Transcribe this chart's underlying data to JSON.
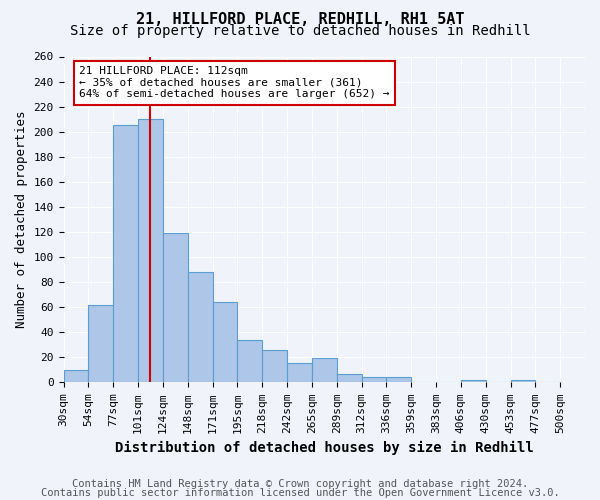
{
  "title": "21, HILLFORD PLACE, REDHILL, RH1 5AT",
  "subtitle": "Size of property relative to detached houses in Redhill",
  "xlabel": "Distribution of detached houses by size in Redhill",
  "ylabel": "Number of detached properties",
  "footnote1": "Contains HM Land Registry data © Crown copyright and database right 2024.",
  "footnote2": "Contains public sector information licensed under the Open Government Licence v3.0.",
  "bin_labels": [
    "30sqm",
    "54sqm",
    "77sqm",
    "101sqm",
    "124sqm",
    "148sqm",
    "171sqm",
    "195sqm",
    "218sqm",
    "242sqm",
    "265sqm",
    "289sqm",
    "312sqm",
    "336sqm",
    "359sqm",
    "383sqm",
    "406sqm",
    "430sqm",
    "453sqm",
    "477sqm",
    "500sqm"
  ],
  "bar_values": [
    10,
    62,
    205,
    210,
    119,
    88,
    64,
    34,
    26,
    15,
    19,
    7,
    4,
    4,
    0,
    0,
    2,
    0,
    2,
    0
  ],
  "bar_color": "#aec6e8",
  "bar_edge_color": "#5a9fd4",
  "annotation_text": "21 HILLFORD PLACE: 112sqm\n← 35% of detached houses are smaller (361)\n64% of semi-detached houses are larger (652) →",
  "annotation_box_color": "#ffffff",
  "annotation_box_edge": "#cc0000",
  "red_line_color": "#cc0000",
  "ylim": [
    0,
    260
  ],
  "yticks": [
    0,
    20,
    40,
    60,
    80,
    100,
    120,
    140,
    160,
    180,
    200,
    220,
    240,
    260
  ],
  "bg_color": "#f0f4fa",
  "title_fontsize": 11,
  "subtitle_fontsize": 10,
  "xlabel_fontsize": 10,
  "ylabel_fontsize": 9,
  "tick_fontsize": 8,
  "footnote_fontsize": 7.5
}
